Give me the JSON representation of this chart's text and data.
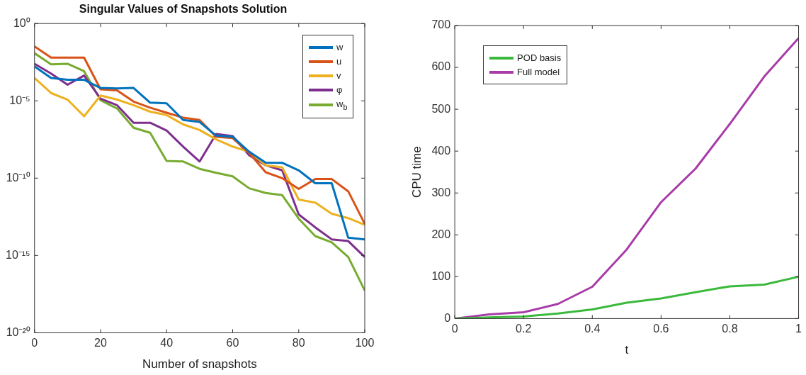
{
  "chart_data": [
    {
      "type": "line",
      "title": "Singular Values of Snapshots Solution",
      "xlabel": "Number of snapshots",
      "x": [
        0,
        5,
        10,
        15,
        20,
        25,
        30,
        35,
        40,
        45,
        50,
        55,
        60,
        65,
        70,
        75,
        80,
        85,
        90,
        95,
        100
      ],
      "log": "y",
      "grid": false,
      "marker": "none",
      "legend": "top right",
      "xlim": [
        0,
        100
      ],
      "xticks": [
        0,
        20,
        40,
        60,
        80,
        100
      ],
      "ylim": [
        1e-20,
        1
      ],
      "yticks": [
        {
          "value": 1e-20,
          "label": "10⁻²⁰"
        },
        {
          "value": 1e-15,
          "label": "10⁻¹⁵"
        },
        {
          "value": 1e-10,
          "label": "10⁻¹⁰"
        },
        {
          "value": 1e-05,
          "label": "10⁻⁵"
        },
        {
          "value": 1,
          "label": "10⁰"
        }
      ],
      "series": [
        {
          "name": "w",
          "color": "#0072bd",
          "values": [
            0.0017,
            0.0003,
            0.00023,
            0.00023,
            6.8e-05,
            6.3e-05,
            6.8e-05,
            7.6e-06,
            6.9e-06,
            5.8e-07,
            4.3e-07,
            5.6e-08,
            4.7e-08,
            5.1e-09,
            1e-09,
            9.8e-10,
            3.2e-10,
            4.7e-11,
            4.7e-11,
            1.4e-14,
            1.1e-14
          ]
        },
        {
          "name": "u",
          "color": "#d95319",
          "values": [
            0.033,
            0.0063,
            0.0063,
            0.0063,
            5.6e-05,
            4.7e-05,
            8.9e-06,
            3.6e-06,
            1.7e-06,
            8.1e-07,
            5.8e-07,
            4.7e-08,
            3.9e-08,
            4.3e-09,
            2.4e-10,
            1e-10,
            2e-11,
            8.7e-11,
            8.7e-11,
            1.4e-11,
            1.1e-13
          ]
        },
        {
          "name": "v",
          "color": "#edb120",
          "values": [
            0.0003,
            3.2e-05,
            1.2e-05,
            1e-06,
            2.2e-05,
            1.2e-05,
            5.2e-06,
            2e-06,
            1.2e-06,
            3e-07,
            1.3e-07,
            3.2e-08,
            1.1e-08,
            5.1e-09,
            6.8e-10,
            5e-10,
            4.1e-12,
            2.6e-12,
            5e-13,
            2.6e-13,
            9.5e-14
          ]
        },
        {
          "name": "φ",
          "color": "#7e2f8e",
          "values": [
            0.0025,
            0.00058,
            0.00011,
            0.00043,
            1.4e-05,
            5.2e-06,
            3.8e-07,
            3.8e-07,
            1.2e-07,
            1.1e-08,
            1.2e-09,
            7.2e-08,
            5.2e-08,
            3e-09,
            6.8e-10,
            3.2e-10,
            4.5e-13,
            6.6e-14,
            1.1e-14,
            8.5e-15,
            7.8e-16
          ]
        },
        {
          "name": "w$_{b}$",
          "color": "#77ac30",
          "values": [
            0.012,
            0.0023,
            0.0025,
            0.00083,
            1.1e-05,
            3.2e-06,
            1.8e-07,
            8.7e-08,
            1.3e-09,
            1.2e-09,
            4e-10,
            2.2e-10,
            1.3e-10,
            2.2e-11,
            1.1e-11,
            7.9e-12,
            2.4e-13,
            1.8e-14,
            7.1e-15,
            7.8e-16,
            5.4e-18
          ]
        }
      ]
    },
    {
      "type": "line",
      "xlabel": "t",
      "ylabel": "CPU time",
      "x": [
        0,
        0.1,
        0.2,
        0.3,
        0.4,
        0.5,
        0.6,
        0.7,
        0.8,
        0.9,
        1
      ],
      "grid": false,
      "marker": "none",
      "legend": "top left",
      "xlim": [
        0,
        1
      ],
      "xticks": [
        0,
        0.2,
        0.4,
        0.6,
        0.8,
        1
      ],
      "ylim": [
        0,
        700
      ],
      "yticks": [
        0,
        100,
        200,
        300,
        400,
        500,
        600,
        700
      ],
      "series": [
        {
          "name": "POD basis",
          "color": "#3cb93c",
          "values": [
            0,
            3,
            5,
            12,
            22,
            38,
            48,
            63,
            77,
            81,
            100
          ]
        },
        {
          "name": "Full model",
          "color": "#a83ca8",
          "values": [
            0,
            10,
            15,
            35,
            76,
            165,
            278,
            358,
            465,
            578,
            670
          ]
        }
      ]
    }
  ]
}
